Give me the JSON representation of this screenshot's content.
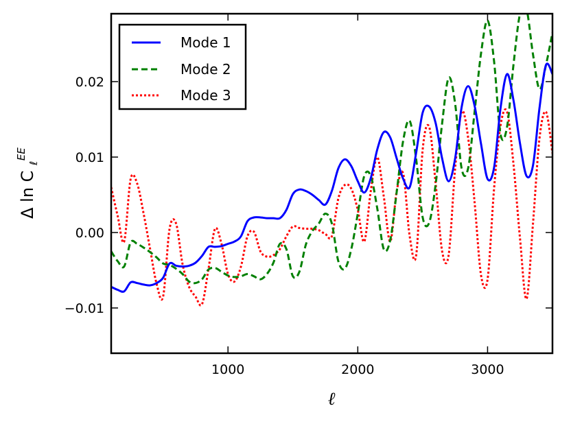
{
  "chart_data": {
    "type": "line",
    "title": "",
    "xlabel": "ℓ",
    "ylabel": {
      "main": "Δ ln C",
      "sup": "EE",
      "sub": "ℓ"
    },
    "xlim": [
      100,
      3500
    ],
    "ylim": [
      -0.016,
      0.029
    ],
    "xticks": [
      1000,
      2000,
      3000
    ],
    "xtick_labels": [
      "1000",
      "2000",
      "3000"
    ],
    "yticks": [
      -0.01,
      0.0,
      0.01,
      0.02
    ],
    "ytick_labels": [
      "−0.01",
      "0.00",
      "0.01",
      "0.02"
    ],
    "grid": false,
    "legend_position": "top-left",
    "series": [
      {
        "name": "Mode 1",
        "color": "#0000ff",
        "style": "solid",
        "x": [
          100,
          150,
          200,
          250,
          300,
          350,
          400,
          450,
          500,
          550,
          600,
          650,
          700,
          750,
          800,
          850,
          900,
          950,
          1000,
          1050,
          1100,
          1150,
          1200,
          1250,
          1300,
          1350,
          1400,
          1450,
          1500,
          1550,
          1600,
          1650,
          1700,
          1750,
          1800,
          1850,
          1900,
          1950,
          2000,
          2050,
          2100,
          2150,
          2200,
          2250,
          2300,
          2350,
          2400,
          2450,
          2500,
          2550,
          2600,
          2650,
          2700,
          2750,
          2800,
          2850,
          2900,
          2950,
          3000,
          3050,
          3100,
          3150,
          3200,
          3250,
          3300,
          3350,
          3400,
          3450,
          3500
        ],
        "y": [
          -0.0072,
          -0.0076,
          -0.0078,
          -0.0066,
          -0.0067,
          -0.0069,
          -0.007,
          -0.0067,
          -0.006,
          -0.0041,
          -0.0044,
          -0.0045,
          -0.0044,
          -0.004,
          -0.0031,
          -0.0019,
          -0.0019,
          -0.0018,
          -0.0015,
          -0.0012,
          -0.0005,
          0.0015,
          0.002,
          0.002,
          0.0019,
          0.0019,
          0.0019,
          0.003,
          0.0051,
          0.0057,
          0.0055,
          0.005,
          0.0043,
          0.0037,
          0.0055,
          0.0085,
          0.0097,
          0.0088,
          0.0068,
          0.0053,
          0.0072,
          0.011,
          0.0133,
          0.0126,
          0.0098,
          0.0071,
          0.006,
          0.0106,
          0.0159,
          0.0167,
          0.0145,
          0.0098,
          0.0068,
          0.0098,
          0.0166,
          0.0194,
          0.0168,
          0.0117,
          0.0071,
          0.0086,
          0.0165,
          0.021,
          0.0175,
          0.0118,
          0.0075,
          0.0089,
          0.0165,
          0.0222,
          0.021
        ]
      },
      {
        "name": "Mode 2",
        "color": "#008000",
        "style": "dashed",
        "x": [
          100,
          150,
          200,
          250,
          300,
          350,
          400,
          450,
          500,
          550,
          600,
          650,
          700,
          750,
          800,
          850,
          900,
          950,
          1000,
          1050,
          1100,
          1150,
          1200,
          1250,
          1300,
          1350,
          1400,
          1450,
          1500,
          1550,
          1600,
          1650,
          1700,
          1750,
          1800,
          1850,
          1900,
          1950,
          2000,
          2050,
          2100,
          2150,
          2200,
          2250,
          2300,
          2350,
          2400,
          2450,
          2500,
          2550,
          2600,
          2650,
          2700,
          2750,
          2800,
          2850,
          2900,
          2950,
          3000,
          3050,
          3100,
          3150,
          3200,
          3250,
          3300,
          3350,
          3400,
          3450,
          3500
        ],
        "y": [
          -0.0025,
          -0.0038,
          -0.0045,
          -0.0013,
          -0.0015,
          -0.002,
          -0.0026,
          -0.0033,
          -0.0041,
          -0.0043,
          -0.0048,
          -0.0055,
          -0.0065,
          -0.0067,
          -0.0062,
          -0.0049,
          -0.0047,
          -0.0052,
          -0.0057,
          -0.0059,
          -0.0058,
          -0.0055,
          -0.0058,
          -0.0062,
          -0.0055,
          -0.004,
          -0.0015,
          -0.0022,
          -0.0058,
          -0.0052,
          -0.0016,
          0.0002,
          0.0012,
          0.0025,
          0.0012,
          -0.0038,
          -0.0048,
          -0.0022,
          0.0025,
          0.0075,
          0.0075,
          0.0032,
          -0.0022,
          -0.001,
          0.0054,
          0.0122,
          0.0148,
          0.0097,
          0.002,
          0.0013,
          0.0064,
          0.0145,
          0.0205,
          0.0171,
          0.0085,
          0.0085,
          0.016,
          0.0238,
          0.0281,
          0.0227,
          0.013,
          0.014,
          0.0223,
          0.029,
          0.0296,
          0.0236,
          0.019,
          0.0222,
          0.0265
        ]
      },
      {
        "name": "Mode 3",
        "color": "#ff0000",
        "style": "dotted",
        "x": [
          100,
          150,
          200,
          250,
          300,
          350,
          400,
          450,
          500,
          550,
          600,
          650,
          700,
          750,
          800,
          850,
          900,
          950,
          1000,
          1050,
          1100,
          1150,
          1200,
          1250,
          1300,
          1350,
          1400,
          1450,
          1500,
          1550,
          1600,
          1650,
          1700,
          1750,
          1800,
          1850,
          1900,
          1950,
          2000,
          2050,
          2100,
          2150,
          2200,
          2250,
          2300,
          2350,
          2400,
          2450,
          2500,
          2550,
          2600,
          2650,
          2700,
          2750,
          2800,
          2850,
          2900,
          2950,
          3000,
          3050,
          3100,
          3150,
          3200,
          3250,
          3300,
          3350,
          3400,
          3450,
          3500
        ],
        "y": [
          0.006,
          0.0022,
          -0.0012,
          0.0071,
          0.0065,
          0.0025,
          -0.0022,
          -0.0068,
          -0.0085,
          0.0005,
          0.0012,
          -0.0042,
          -0.0072,
          -0.0085,
          -0.0095,
          -0.0048,
          0.0005,
          -0.0015,
          -0.0055,
          -0.0065,
          -0.0045,
          -0.0005,
          0.0001,
          -0.0025,
          -0.0032,
          -0.003,
          -0.0022,
          -0.0005,
          0.0008,
          0.0006,
          0.0005,
          0.0005,
          0.0003,
          -0.0002,
          -0.0005,
          0.0045,
          0.0063,
          0.0058,
          0.003,
          -0.0012,
          0.0055,
          0.01,
          0.0048,
          -0.0012,
          0.0055,
          0.0078,
          -0.0005,
          -0.003,
          0.011,
          0.014,
          0.0065,
          -0.0025,
          -0.003,
          0.0085,
          0.016,
          0.0126,
          0.004,
          -0.0057,
          -0.0062,
          0.0058,
          0.0142,
          0.016,
          0.009,
          -0.0008,
          -0.0088,
          0.0012,
          0.0125,
          0.016,
          0.0105
        ]
      }
    ]
  }
}
